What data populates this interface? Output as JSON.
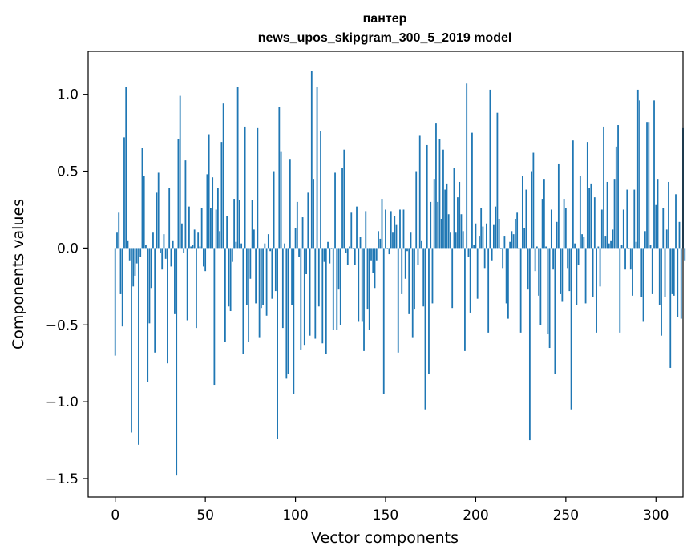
{
  "chart_data": {
    "type": "bar",
    "title_line1": "пантер",
    "title_line2": "news_upos_skipgram_300_5_2019 model",
    "xlabel": "Vector components",
    "ylabel": "Components values",
    "xlim": [
      -15,
      315
    ],
    "ylim": [
      -1.62,
      1.28
    ],
    "xticks": [
      0,
      50,
      100,
      150,
      200,
      250,
      300
    ],
    "xtick_labels": [
      "0",
      "50",
      "100",
      "150",
      "200",
      "250",
      "300"
    ],
    "yticks": [
      -1.5,
      -1.0,
      -0.5,
      0.0,
      0.5,
      1.0
    ],
    "ytick_labels": [
      "−1.5",
      "−1.0",
      "−0.5",
      "0.0",
      "0.5",
      "1.0"
    ],
    "bar_color": "#1f77b4",
    "values": [
      -0.7,
      0.1,
      0.23,
      -0.3,
      -0.51,
      0.72,
      1.05,
      0.05,
      -0.08,
      -1.2,
      -0.25,
      -0.18,
      -0.1,
      -1.28,
      -0.06,
      0.65,
      0.47,
      0.02,
      -0.87,
      -0.49,
      -0.26,
      0.1,
      -0.68,
      0.36,
      0.49,
      -0.03,
      -0.14,
      0.09,
      -0.07,
      -0.75,
      0.39,
      -0.12,
      0.05,
      -0.43,
      -1.48,
      0.71,
      0.99,
      0.16,
      -0.03,
      0.57,
      -0.47,
      0.27,
      0.01,
      0.02,
      0.12,
      -0.52,
      0.1,
      0.01,
      0.26,
      -0.12,
      -0.15,
      0.48,
      0.74,
      0.26,
      0.46,
      -0.89,
      0.25,
      0.39,
      0.11,
      0.69,
      0.94,
      -0.61,
      0.21,
      -0.38,
      -0.41,
      -0.09,
      0.32,
      0.04,
      1.05,
      0.31,
      0.03,
      -0.69,
      0.79,
      -0.37,
      -0.61,
      -0.2,
      0.31,
      0.12,
      -0.36,
      0.78,
      -0.58,
      -0.39,
      -0.37,
      0.03,
      -0.44,
      0.09,
      -0.02,
      -0.33,
      0.5,
      -0.28,
      -1.24,
      0.92,
      0.63,
      -0.52,
      0.03,
      -0.85,
      -0.82,
      0.58,
      -0.37,
      -0.95,
      0.13,
      0.3,
      -0.06,
      -0.66,
      0.2,
      -0.63,
      -0.17,
      0.36,
      -0.57,
      1.15,
      0.45,
      -0.59,
      1.05,
      -0.38,
      0.76,
      -0.62,
      -0.09,
      -0.69,
      0.04,
      -0.1,
      0.0,
      -0.53,
      0.49,
      -0.53,
      -0.27,
      -0.5,
      0.52,
      0.64,
      -0.03,
      -0.11,
      0.01,
      0.23,
      0.0,
      -0.11,
      0.27,
      -0.48,
      0.07,
      -0.48,
      -0.67,
      0.24,
      -0.4,
      -0.53,
      -0.08,
      -0.16,
      -0.26,
      -0.08,
      0.11,
      0.06,
      0.32,
      -0.95,
      0.25,
      0.0,
      -0.04,
      0.24,
      0.1,
      0.21,
      0.15,
      -0.68,
      0.25,
      -0.3,
      0.25,
      -0.2,
      -0.02,
      -0.43,
      0.1,
      -0.58,
      -0.4,
      0.5,
      -0.11,
      0.73,
      0.05,
      -0.38,
      -1.05,
      0.67,
      -0.82,
      0.3,
      -0.36,
      0.45,
      0.81,
      0.3,
      0.71,
      0.19,
      0.64,
      0.38,
      0.42,
      0.22,
      0.1,
      -0.39,
      0.52,
      0.1,
      0.33,
      0.43,
      0.22,
      0.11,
      -0.67,
      1.07,
      -0.06,
      -0.42,
      0.75,
      0.02,
      0.16,
      -0.33,
      0.08,
      0.26,
      0.14,
      -0.13,
      0.16,
      -0.55,
      1.03,
      -0.08,
      0.15,
      0.27,
      0.88,
      0.19,
      0.0,
      -0.13,
      0.08,
      -0.36,
      -0.46,
      0.04,
      0.11,
      0.09,
      0.19,
      0.23,
      0.0,
      -0.55,
      0.47,
      0.13,
      0.38,
      -0.27,
      -1.25,
      0.5,
      0.62,
      -0.15,
      0.01,
      -0.31,
      -0.5,
      0.32,
      0.45,
      0.01,
      -0.56,
      -0.65,
      0.25,
      -0.14,
      -0.82,
      0.17,
      0.55,
      -0.3,
      -0.35,
      0.32,
      0.26,
      -0.13,
      -0.28,
      -1.05,
      0.7,
      0.03,
      -0.37,
      -0.11,
      0.47,
      0.09,
      0.07,
      -0.36,
      0.69,
      0.39,
      0.42,
      -0.32,
      0.33,
      -0.55,
      0.01,
      -0.25,
      0.25,
      0.79,
      0.08,
      0.43,
      0.03,
      0.05,
      0.12,
      0.45,
      0.66,
      0.8,
      -0.55,
      0.02,
      0.25,
      -0.14,
      0.38,
      0.0,
      -0.14,
      -0.31,
      0.38,
      0.04,
      1.03,
      0.96,
      -0.32,
      -0.48,
      0.11,
      0.82,
      0.82,
      0.02,
      -0.3,
      0.96,
      0.28,
      0.45,
      -0.37,
      -0.57,
      0.26,
      -0.32,
      0.12,
      0.43,
      -0.78,
      -0.3,
      -0.31,
      0.35,
      -0.45,
      0.17,
      -0.46,
      0.78,
      -0.08
    ]
  }
}
